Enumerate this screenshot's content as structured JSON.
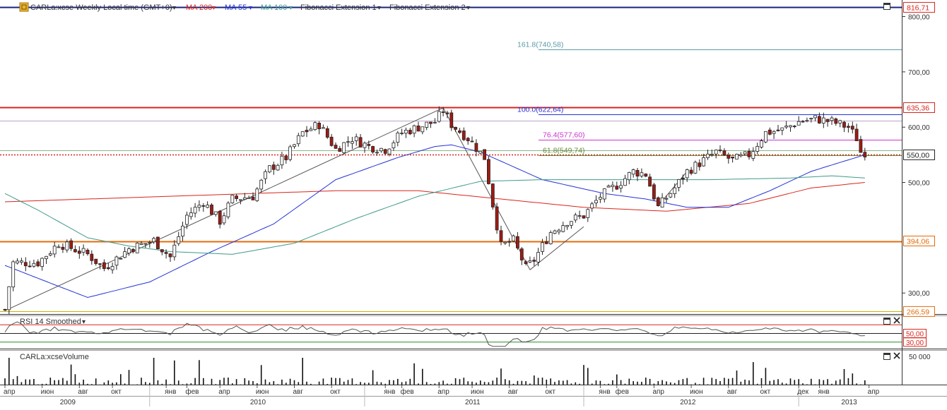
{
  "header": {
    "symbol_label": "CARLa:xcse Weekly Local time (GMT+0)",
    "indicators": [
      {
        "label": "MA 200",
        "color": "#d9251c"
      },
      {
        "label": "MA 55",
        "color": "#2433d6"
      },
      {
        "label": "MA 100",
        "color": "#3f9a8a"
      },
      {
        "label": "Fibonacci Extension 1",
        "color": "#333333"
      },
      {
        "label": "Fibonacci Extension 2",
        "color": "#333333"
      }
    ],
    "dropdown_arrow": "▾"
  },
  "price_axis": {
    "ticks": [
      "800,00",
      "700,00",
      "600,00",
      "500,00",
      "300,00"
    ],
    "tick_values": [
      800,
      700,
      600,
      500,
      300
    ],
    "badges": [
      {
        "value": 816.71,
        "label": "816,71",
        "color": "#d9251c"
      },
      {
        "value": 635.36,
        "label": "635,36",
        "color": "#d9251c"
      },
      {
        "value": 550.0,
        "label": "550,00",
        "color": "#222222"
      },
      {
        "value": 394.06,
        "label": "394,06",
        "color": "#e36b0a"
      },
      {
        "value": 266.59,
        "label": "266,59",
        "color": "#e36b0a"
      }
    ]
  },
  "fib_labels": [
    {
      "text": "161.8(740,58)",
      "value": 740.58,
      "color": "#5c9aa8"
    },
    {
      "text": "100.0(622,64)",
      "value": 622.64,
      "color": "#2433d6"
    },
    {
      "text": "76.4(577,60)",
      "value": 577.6,
      "color": "#cc33cc"
    },
    {
      "text": "61.8(549,74)",
      "value": 549.74,
      "color": "#6a8a3a"
    }
  ],
  "rsi_panel": {
    "title": "RSI 14 Smoothed",
    "badges": [
      {
        "value": 50,
        "label": "50,00"
      },
      {
        "value": 30,
        "label": "30,00"
      }
    ]
  },
  "volume_panel": {
    "title": "CARLa:xcseVolume",
    "tick_label": "50 000",
    "tick_value": 50000
  },
  "time_axis": {
    "months": [
      {
        "label": "апр",
        "week": 0
      },
      {
        "label": "июн",
        "week": 9
      },
      {
        "label": "авг",
        "week": 18
      },
      {
        "label": "окт",
        "week": 26
      },
      {
        "label": "янв",
        "week": 39
      },
      {
        "label": "фев",
        "week": 44
      },
      {
        "label": "апр",
        "week": 52
      },
      {
        "label": "июн",
        "week": 61
      },
      {
        "label": "авг",
        "week": 70
      },
      {
        "label": "окт",
        "week": 79
      },
      {
        "label": "янв",
        "week": 92
      },
      {
        "label": "фев",
        "week": 96
      },
      {
        "label": "апр",
        "week": 105
      },
      {
        "label": "июн",
        "week": 113
      },
      {
        "label": "авг",
        "week": 122
      },
      {
        "label": "окт",
        "week": 131
      },
      {
        "label": "янв",
        "week": 144
      },
      {
        "label": "фев",
        "week": 148
      },
      {
        "label": "апр",
        "week": 157
      },
      {
        "label": "июн",
        "week": 166
      },
      {
        "label": "авг",
        "week": 175
      },
      {
        "label": "окт",
        "week": 183
      },
      {
        "label": "дек",
        "week": 192
      },
      {
        "label": "янв",
        "week": 197
      },
      {
        "label": "апр",
        "week": 209
      }
    ],
    "years": [
      {
        "label": "2009",
        "week": 15
      },
      {
        "label": "2010",
        "week": 61
      },
      {
        "label": "2011",
        "week": 113
      },
      {
        "label": "2012",
        "week": 165
      },
      {
        "label": "2013",
        "week": 204
      }
    ],
    "year_boundaries": [
      35,
      87,
      140,
      192
    ]
  },
  "chart_data": {
    "type": "candlestick",
    "title": "CARLa:xcse Weekly Local time (GMT+0)",
    "period": "weekly",
    "price_range": [
      262,
      830
    ],
    "horizontal_levels": [
      {
        "value": 816.71,
        "color": "#1a237e",
        "style": "solid"
      },
      {
        "value": 635.36,
        "color": "#d9251c",
        "style": "solid"
      },
      {
        "value": 550.0,
        "color": "#d9251c",
        "style": "dotted"
      },
      {
        "value": 394.06,
        "color": "#e36b0a",
        "style": "solid"
      },
      {
        "value": 266.59,
        "color": "#c8b400",
        "style": "solid"
      }
    ],
    "fib_levels": [
      {
        "ratio": 161.8,
        "value": 740.58
      },
      {
        "ratio": 100.0,
        "value": 622.64
      },
      {
        "ratio": 76.4,
        "value": 577.6
      },
      {
        "ratio": 61.8,
        "value": 549.74
      }
    ],
    "close_anchors": [
      [
        0,
        270
      ],
      [
        2,
        355
      ],
      [
        8,
        355
      ],
      [
        13,
        390
      ],
      [
        20,
        370
      ],
      [
        24,
        345
      ],
      [
        30,
        380
      ],
      [
        36,
        395
      ],
      [
        40,
        365
      ],
      [
        44,
        440
      ],
      [
        48,
        465
      ],
      [
        52,
        430
      ],
      [
        55,
        470
      ],
      [
        60,
        475
      ],
      [
        64,
        525
      ],
      [
        68,
        545
      ],
      [
        72,
        590
      ],
      [
        76,
        605
      ],
      [
        80,
        560
      ],
      [
        84,
        580
      ],
      [
        88,
        565
      ],
      [
        92,
        560
      ],
      [
        96,
        590
      ],
      [
        100,
        600
      ],
      [
        104,
        610
      ],
      [
        106,
        630
      ],
      [
        108,
        605
      ],
      [
        112,
        580
      ],
      [
        116,
        545
      ],
      [
        118,
        460
      ],
      [
        120,
        385
      ],
      [
        123,
        395
      ],
      [
        126,
        345
      ],
      [
        128,
        360
      ],
      [
        132,
        410
      ],
      [
        136,
        430
      ],
      [
        140,
        440
      ],
      [
        144,
        475
      ],
      [
        148,
        495
      ],
      [
        152,
        520
      ],
      [
        155,
        515
      ],
      [
        158,
        455
      ],
      [
        162,
        490
      ],
      [
        165,
        520
      ],
      [
        168,
        535
      ],
      [
        172,
        555
      ],
      [
        176,
        540
      ],
      [
        180,
        550
      ],
      [
        184,
        590
      ],
      [
        188,
        595
      ],
      [
        192,
        610
      ],
      [
        196,
        615
      ],
      [
        200,
        610
      ],
      [
        204,
        600
      ],
      [
        206,
        580
      ],
      [
        207,
        555
      ]
    ],
    "rsi": {
      "upper": 70,
      "lower": 30,
      "mid": 50
    },
    "series": [
      {
        "name": "MA 200",
        "color": "#d9251c",
        "anchors": [
          [
            0,
            465
          ],
          [
            40,
            475
          ],
          [
            80,
            485
          ],
          [
            100,
            485
          ],
          [
            120,
            470
          ],
          [
            140,
            455
          ],
          [
            160,
            448
          ],
          [
            180,
            462
          ],
          [
            195,
            490
          ],
          [
            208,
            500
          ]
        ]
      },
      {
        "name": "MA 55",
        "color": "#2433d6",
        "anchors": [
          [
            0,
            350
          ],
          [
            12,
            315
          ],
          [
            20,
            292
          ],
          [
            35,
            320
          ],
          [
            50,
            375
          ],
          [
            65,
            425
          ],
          [
            80,
            505
          ],
          [
            95,
            545
          ],
          [
            104,
            565
          ],
          [
            108,
            568
          ],
          [
            115,
            555
          ],
          [
            130,
            505
          ],
          [
            145,
            480
          ],
          [
            155,
            470
          ],
          [
            165,
            455
          ],
          [
            175,
            455
          ],
          [
            185,
            485
          ],
          [
            195,
            520
          ],
          [
            208,
            550
          ]
        ]
      },
      {
        "name": "MA 100",
        "color": "#3f9a8a",
        "anchors": [
          [
            0,
            480
          ],
          [
            8,
            450
          ],
          [
            20,
            400
          ],
          [
            30,
            385
          ],
          [
            40,
            375
          ],
          [
            55,
            370
          ],
          [
            70,
            390
          ],
          [
            85,
            435
          ],
          [
            100,
            475
          ],
          [
            115,
            502
          ],
          [
            130,
            505
          ],
          [
            150,
            505
          ],
          [
            170,
            505
          ],
          [
            190,
            508
          ],
          [
            200,
            512
          ],
          [
            208,
            508
          ]
        ]
      }
    ]
  }
}
